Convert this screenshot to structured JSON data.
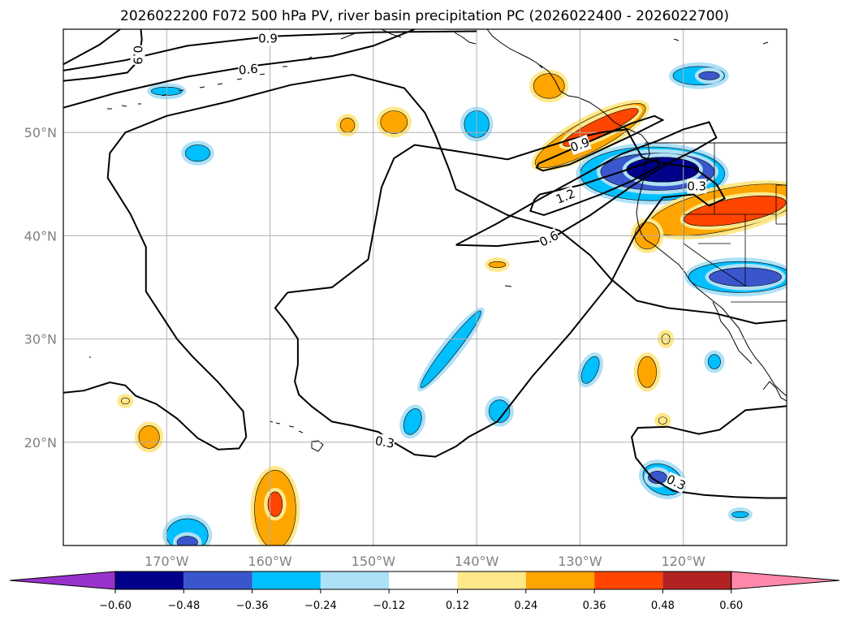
{
  "chart_data": {
    "type": "map",
    "title": "2026022200 F072 500 hPa PV, river basin precipitation PC (2026022400 - 2026022700)",
    "map_extent": {
      "lon": [
        -180,
        -110
      ],
      "lat": [
        10,
        60
      ]
    },
    "lon_ticks": [
      {
        "value": -170,
        "label": "170°W"
      },
      {
        "value": -160,
        "label": "160°W"
      },
      {
        "value": -150,
        "label": "150°W"
      },
      {
        "value": -140,
        "label": "140°W"
      },
      {
        "value": -130,
        "label": "130°W"
      },
      {
        "value": -120,
        "label": "120°W"
      }
    ],
    "lat_ticks": [
      {
        "value": 20,
        "label": "20°N"
      },
      {
        "value": 30,
        "label": "30°N"
      },
      {
        "value": 40,
        "label": "40°N"
      },
      {
        "value": 50,
        "label": "50°N"
      }
    ],
    "grid": true,
    "pv_contour_levels": [
      0.3,
      0.6,
      0.9,
      1.2
    ],
    "pv_contour_labels": [
      {
        "text": "0.9",
        "lon": -160.2,
        "lat": 59.1,
        "angle": 0
      },
      {
        "text": "0.9",
        "lon": -172.8,
        "lat": 57.5,
        "angle": 90
      },
      {
        "text": "0.6",
        "lon": -162.1,
        "lat": 56.1,
        "angle": -5
      },
      {
        "text": "0.9",
        "lon": -130.0,
        "lat": 48.8,
        "angle": -20
      },
      {
        "text": "1.2",
        "lon": -131.4,
        "lat": 43.8,
        "angle": -22
      },
      {
        "text": "0.6",
        "lon": -133.0,
        "lat": 39.7,
        "angle": -27
      },
      {
        "text": "0.3",
        "lon": -118.7,
        "lat": 44.8,
        "angle": 0
      },
      {
        "text": "0.3",
        "lon": -148.9,
        "lat": 20.0,
        "angle": 10
      },
      {
        "text": "0.3",
        "lon": -120.7,
        "lat": 16.1,
        "angle": 25
      }
    ],
    "colorbar": {
      "boundaries": [
        -0.6,
        -0.48,
        -0.36,
        -0.24,
        -0.12,
        0.12,
        0.24,
        0.36,
        0.48,
        0.6
      ],
      "tick_labels": [
        "−0.60",
        "−0.48",
        "−0.36",
        "−0.24",
        "−0.12",
        "0.12",
        "0.24",
        "0.36",
        "0.48",
        "0.60"
      ],
      "colors": [
        "#9932CC",
        "#00008B",
        "#3A56CC",
        "#00BFFF",
        "#ADE1F8",
        "#FFFFFF",
        "#FFE88A",
        "#FFA500",
        "#FF4500",
        "#B22222",
        "#FF88AA"
      ],
      "extend": "both"
    },
    "precip_pc_anomalies": [
      {
        "lon": -170.0,
        "lat": 54.0,
        "rx": 1.5,
        "ry": 0.4,
        "value": -0.3
      },
      {
        "lon": -167.0,
        "lat": 48.0,
        "rx": 1.2,
        "ry": 0.8,
        "value": -0.3
      },
      {
        "lon": -152.5,
        "lat": 50.7,
        "rx": 0.7,
        "ry": 0.7,
        "value": 0.3
      },
      {
        "lon": -148.0,
        "lat": 51.0,
        "rx": 1.3,
        "ry": 1.1,
        "value": 0.3
      },
      {
        "lon": -140.0,
        "lat": 50.8,
        "rx": 1.2,
        "ry": 1.3,
        "value": -0.3
      },
      {
        "lon": -133.0,
        "lat": 54.5,
        "rx": 1.5,
        "ry": 1.2,
        "value": 0.3
      },
      {
        "lon": -118.5,
        "lat": 55.5,
        "rx": 2.5,
        "ry": 0.9,
        "value": -0.3
      },
      {
        "lon": -117.5,
        "lat": 55.5,
        "rx": 1.0,
        "ry": 0.4,
        "value": -0.45
      },
      {
        "lon": -129.0,
        "lat": 49.7,
        "rx": 6.0,
        "ry": 1.5,
        "angle": -28,
        "value": 0.26
      },
      {
        "lon": -128.0,
        "lat": 50.5,
        "rx": 4.0,
        "ry": 0.8,
        "angle": -25,
        "value": 0.4
      },
      {
        "lon": -123.0,
        "lat": 46.0,
        "rx": 7.0,
        "ry": 2.6,
        "value": -0.28
      },
      {
        "lon": -122.5,
        "lat": 46.2,
        "rx": 5.5,
        "ry": 1.8,
        "value": -0.4
      },
      {
        "lon": -122.0,
        "lat": 46.4,
        "rx": 3.5,
        "ry": 1.2,
        "value": -0.52
      },
      {
        "lon": -116.0,
        "lat": 42.5,
        "rx": 7.5,
        "ry": 2.0,
        "angle": -12,
        "value": 0.26
      },
      {
        "lon": -115.0,
        "lat": 42.4,
        "rx": 5.0,
        "ry": 1.2,
        "angle": -10,
        "value": 0.4
      },
      {
        "lon": -123.5,
        "lat": 40.0,
        "rx": 1.2,
        "ry": 1.3,
        "value": 0.3
      },
      {
        "lon": -114.5,
        "lat": 36.0,
        "rx": 5.0,
        "ry": 1.5,
        "value": -0.28
      },
      {
        "lon": -114.0,
        "lat": 36.0,
        "rx": 3.5,
        "ry": 0.9,
        "value": -0.42
      },
      {
        "lon": -138.0,
        "lat": 37.2,
        "rx": 0.8,
        "ry": 0.3,
        "value": 0.3
      },
      {
        "lon": -142.5,
        "lat": 29.0,
        "rx": 4.7,
        "ry": 0.6,
        "angle": -52,
        "value": -0.3
      },
      {
        "lon": -129.0,
        "lat": 27.0,
        "rx": 0.7,
        "ry": 1.4,
        "angle": 25,
        "value": -0.3
      },
      {
        "lon": -123.5,
        "lat": 26.8,
        "rx": 0.9,
        "ry": 1.5,
        "value": 0.3
      },
      {
        "lon": -121.7,
        "lat": 30.0,
        "rx": 0.4,
        "ry": 0.5,
        "value": 0.2
      },
      {
        "lon": -117.0,
        "lat": 27.8,
        "rx": 0.6,
        "ry": 0.7,
        "value": -0.3
      },
      {
        "lon": -146.2,
        "lat": 22.0,
        "rx": 0.8,
        "ry": 1.3,
        "angle": 20,
        "value": -0.3
      },
      {
        "lon": -137.8,
        "lat": 23.0,
        "rx": 1.0,
        "ry": 1.1,
        "value": -0.3
      },
      {
        "lon": -122.0,
        "lat": 16.4,
        "rx": 2.0,
        "ry": 1.4,
        "angle": 25,
        "value": -0.3
      },
      {
        "lon": -122.5,
        "lat": 16.6,
        "rx": 0.9,
        "ry": 0.6,
        "value": -0.42
      },
      {
        "lon": -122.0,
        "lat": 22.1,
        "rx": 0.4,
        "ry": 0.35,
        "value": 0.2
      },
      {
        "lon": -174.0,
        "lat": 24.0,
        "rx": 0.4,
        "ry": 0.3,
        "value": 0.2
      },
      {
        "lon": -171.7,
        "lat": 20.5,
        "rx": 1.0,
        "ry": 1.1,
        "value": 0.3
      },
      {
        "lon": -159.5,
        "lat": 13.5,
        "rx": 2.0,
        "ry": 3.8,
        "value": 0.28
      },
      {
        "lon": -159.5,
        "lat": 14.0,
        "rx": 0.7,
        "ry": 1.2,
        "value": 0.4
      },
      {
        "lon": -168.0,
        "lat": 11.0,
        "rx": 2.0,
        "ry": 1.6,
        "value": -0.28
      },
      {
        "lon": -168.0,
        "lat": 10.3,
        "rx": 1.0,
        "ry": 0.6,
        "value": -0.42
      },
      {
        "lon": -114.5,
        "lat": 13.0,
        "rx": 0.8,
        "ry": 0.3,
        "value": -0.3
      }
    ],
    "pv_contours_deg": [
      [
        [
          -180,
          56
        ],
        [
          -174,
          57
        ],
        [
          -168,
          58.4
        ],
        [
          -160,
          59.3
        ],
        [
          -150,
          59.7
        ],
        [
          -140,
          59.8
        ]
      ],
      [
        [
          -180,
          52.4
        ],
        [
          -175,
          53.8
        ],
        [
          -168,
          55.4
        ],
        [
          -162,
          56.4
        ],
        [
          -154,
          57.4
        ],
        [
          -150,
          58.4
        ],
        [
          -146,
          60
        ]
      ],
      [
        [
          -180,
          55
        ],
        [
          -177,
          55.3
        ],
        [
          -173.8,
          55.8
        ],
        [
          -172.7,
          57
        ],
        [
          -172.4,
          59
        ],
        [
          -172.5,
          60
        ]
      ],
      [
        [
          -180,
          56.6
        ],
        [
          -176.5,
          58.5
        ],
        [
          -174.5,
          60
        ]
      ],
      [
        [
          -134,
          47
        ],
        [
          -131,
          48.3
        ],
        [
          -128,
          49.6
        ],
        [
          -125,
          50.9
        ],
        [
          -122.8,
          51.6
        ],
        [
          -122,
          51.2
        ],
        [
          -125,
          49.7
        ],
        [
          -128,
          48.3
        ],
        [
          -131,
          46.9
        ],
        [
          -133.6,
          46.3
        ],
        [
          -134.2,
          46.6
        ],
        [
          -134,
          47
        ]
      ],
      [
        [
          -133.9,
          44
        ],
        [
          -130,
          44.9
        ],
        [
          -126,
          46.2
        ],
        [
          -122.5,
          47.4
        ],
        [
          -122.3,
          46.8
        ],
        [
          -125,
          45.3
        ],
        [
          -128,
          44
        ],
        [
          -131.5,
          42.7
        ],
        [
          -133.5,
          42
        ],
        [
          -134.8,
          42.4
        ],
        [
          -134.4,
          43.5
        ],
        [
          -133.9,
          44
        ]
      ],
      [
        [
          -142,
          39.1
        ],
        [
          -138,
          41.2
        ],
        [
          -134,
          43.5
        ],
        [
          -130,
          45.7
        ],
        [
          -126,
          47.9
        ],
        [
          -122.5,
          49.2
        ],
        [
          -120,
          50.3
        ],
        [
          -117.5,
          51
        ],
        [
          -116.8,
          49.5
        ],
        [
          -118.7,
          48.4
        ],
        [
          -121.5,
          47
        ],
        [
          -125,
          44.8
        ],
        [
          -129,
          42
        ],
        [
          -133,
          39.6
        ],
        [
          -138,
          39
        ],
        [
          -142,
          39.1
        ]
      ],
      [
        [
          -158.3,
          34.5
        ],
        [
          -154,
          35
        ],
        [
          -150.5,
          37.7
        ],
        [
          -149.7,
          42
        ],
        [
          -149.2,
          44.7
        ],
        [
          -148,
          47.5
        ],
        [
          -146,
          48.8
        ],
        [
          -142,
          48.2
        ],
        [
          -137,
          47.4
        ],
        [
          -131,
          49.3
        ],
        [
          -128,
          50
        ],
        [
          -125.5,
          50.3
        ],
        [
          -124,
          47.6
        ],
        [
          -122,
          47
        ],
        [
          -119,
          46.6
        ],
        [
          -116.8,
          45
        ],
        [
          -116,
          43.6
        ],
        [
          -117.5,
          42.9
        ],
        [
          -119,
          44
        ],
        [
          -122,
          43.7
        ],
        [
          -124.7,
          40
        ],
        [
          -127,
          35.5
        ],
        [
          -131,
          30.5
        ],
        [
          -134.6,
          26.4
        ],
        [
          -138,
          22
        ],
        [
          -140.8,
          20.5
        ],
        [
          -142,
          19.6
        ],
        [
          -144,
          18.6
        ],
        [
          -146,
          18.8
        ],
        [
          -148.4,
          20.2
        ],
        [
          -149.5,
          21
        ],
        [
          -152,
          21.6
        ],
        [
          -154,
          22
        ],
        [
          -156,
          23.5
        ],
        [
          -157.2,
          24.6
        ],
        [
          -157.6,
          25.9
        ],
        [
          -157.3,
          27.5
        ],
        [
          -157.3,
          30
        ],
        [
          -158.3,
          31.5
        ],
        [
          -159.5,
          33
        ],
        [
          -158.3,
          34.5
        ]
      ],
      [
        [
          -162.3,
          20.5
        ],
        [
          -162.6,
          23
        ],
        [
          -165,
          25.8
        ],
        [
          -167.5,
          28.3
        ],
        [
          -169,
          30
        ],
        [
          -170.5,
          32.3
        ],
        [
          -172,
          34.6
        ],
        [
          -172,
          38.9
        ],
        [
          -173.5,
          42.1
        ],
        [
          -175.7,
          45.6
        ],
        [
          -175.5,
          48
        ],
        [
          -174,
          50
        ],
        [
          -170,
          51.6
        ],
        [
          -164,
          53
        ],
        [
          -158,
          54.6
        ],
        [
          -152,
          55.6
        ],
        [
          -147,
          54.3
        ],
        [
          -145,
          51.9
        ],
        [
          -144,
          49.8
        ],
        [
          -142.7,
          46.5
        ],
        [
          -142,
          44.5
        ],
        [
          -137,
          42
        ],
        [
          -132,
          40.5
        ],
        [
          -129,
          38.1
        ],
        [
          -127,
          35.8
        ],
        [
          -124.5,
          33.7
        ],
        [
          -121.5,
          33
        ],
        [
          -117,
          32.5
        ],
        [
          -113,
          31.5
        ],
        [
          -110,
          31.8
        ]
      ],
      [
        [
          -162.3,
          20.5
        ],
        [
          -163,
          19.4
        ],
        [
          -165,
          19.3
        ],
        [
          -167,
          20.4
        ],
        [
          -169,
          22.3
        ],
        [
          -171,
          23.7
        ],
        [
          -173,
          24.5
        ],
        [
          -174,
          25.5
        ],
        [
          -175.5,
          25.8
        ],
        [
          -178,
          25
        ],
        [
          -180,
          24.8
        ]
      ],
      [
        [
          -110,
          23.5
        ],
        [
          -114,
          23.1
        ],
        [
          -116.5,
          21.2
        ],
        [
          -118.5,
          20.8
        ],
        [
          -121.5,
          21.5
        ],
        [
          -124.4,
          21.4
        ],
        [
          -125,
          20.5
        ],
        [
          -124.6,
          18.5
        ],
        [
          -123,
          16.5
        ],
        [
          -121,
          15.3
        ],
        [
          -118,
          14.9
        ],
        [
          -115,
          14.7
        ],
        [
          -112,
          14.6
        ],
        [
          -110,
          14.6
        ]
      ]
    ]
  }
}
